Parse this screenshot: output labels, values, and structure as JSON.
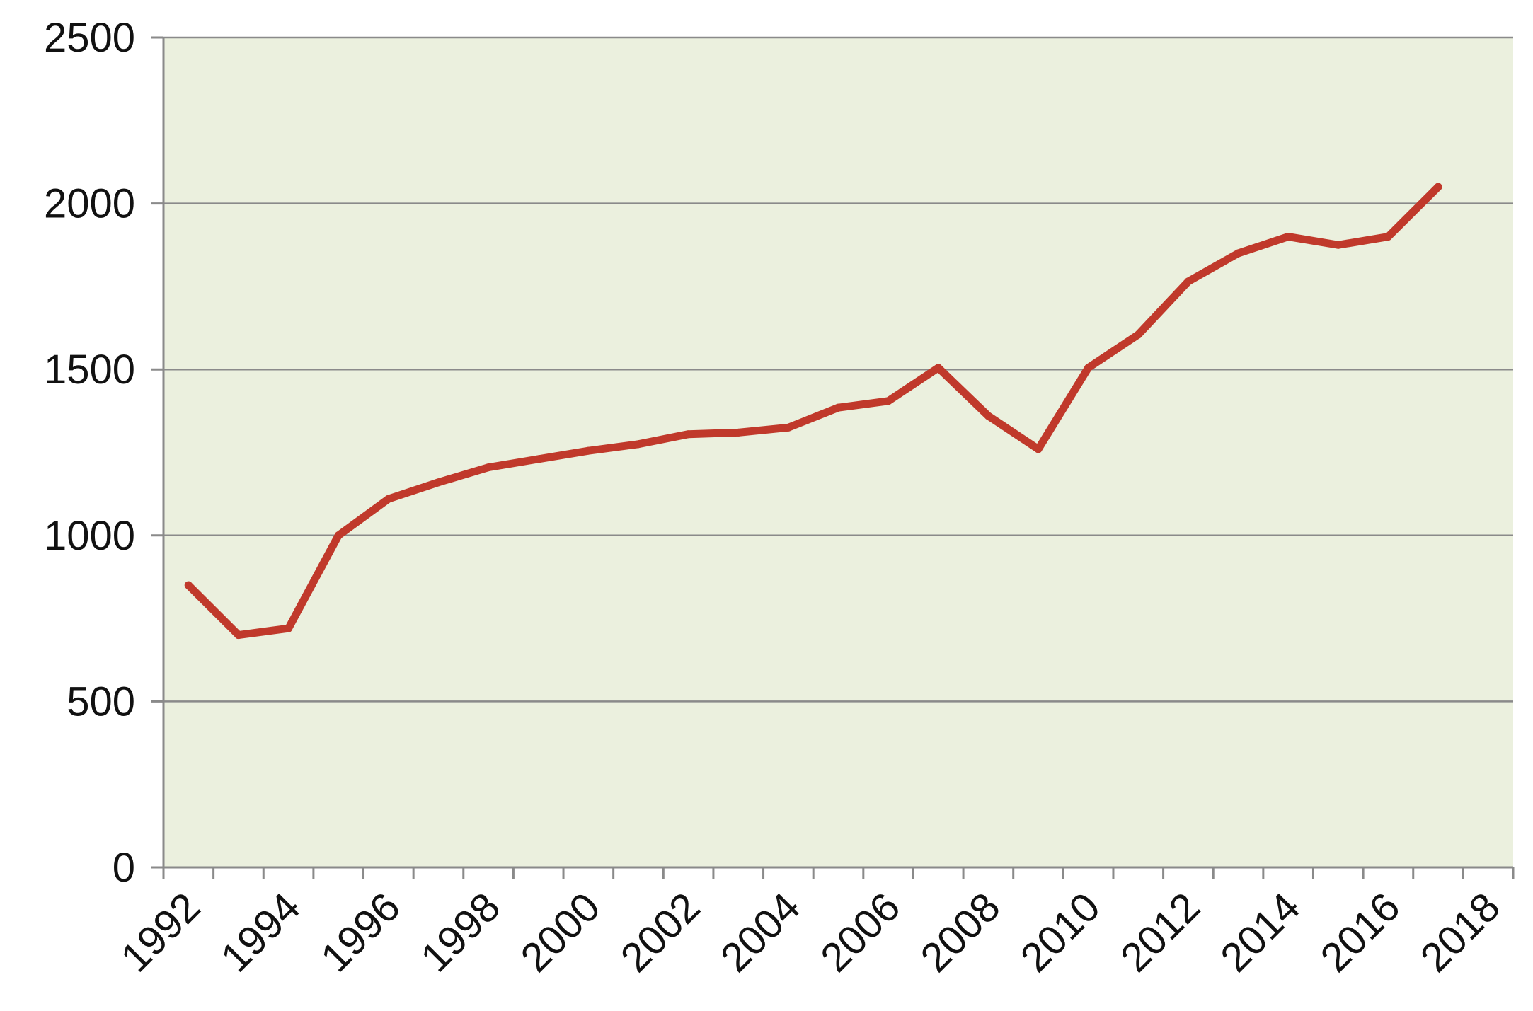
{
  "chart_data": {
    "type": "line",
    "title": "",
    "xlabel": "",
    "ylabel": "",
    "x": [
      1992,
      1993,
      1994,
      1995,
      1996,
      1997,
      1998,
      1999,
      2000,
      2001,
      2002,
      2003,
      2004,
      2005,
      2006,
      2007,
      2008,
      2009,
      2010,
      2011,
      2012,
      2013,
      2014,
      2015,
      2016,
      2017
    ],
    "series": [
      {
        "values": [
          850,
          700,
          720,
          1000,
          1110,
          1160,
          1205,
          1230,
          1255,
          1275,
          1305,
          1310,
          1325,
          1385,
          1405,
          1505,
          1360,
          1260,
          1505,
          1605,
          1765,
          1850,
          1900,
          1875,
          1900,
          2050
        ],
        "color": "#c0392b"
      }
    ],
    "xlim": [
      1991.5,
      2018.5
    ],
    "ylim": [
      0,
      2500
    ],
    "yticks": [
      0,
      500,
      1000,
      1500,
      2000,
      2500
    ],
    "xtick_labels": [
      1992,
      1994,
      1996,
      1998,
      2000,
      2002,
      2004,
      2006,
      2008,
      2010,
      2012,
      2014,
      2016,
      2018
    ],
    "grid": true,
    "legend": "none",
    "colors": {
      "plot_background": "#ebf0de",
      "grid": "#8a8a8a",
      "line": "#c0392b"
    }
  }
}
